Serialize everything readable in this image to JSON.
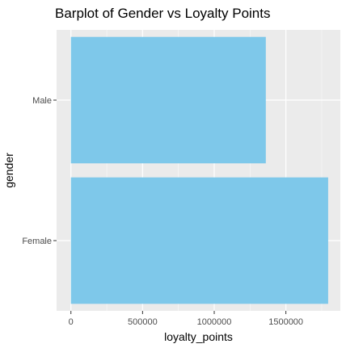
{
  "chart_data": {
    "type": "bar",
    "orientation": "horizontal",
    "title": "Barplot of Gender vs Loyalty Points",
    "xlabel": "loyalty_points",
    "ylabel": "gender",
    "categories": [
      "Female",
      "Male"
    ],
    "values": [
      1795000,
      1360000
    ],
    "xlim": [
      -100000,
      1880000
    ],
    "x_ticks": [
      0,
      500000,
      1000000,
      1500000
    ],
    "x_tick_labels": [
      "0",
      "500000",
      "1000000",
      "1500000"
    ],
    "grid": true,
    "legend": "none",
    "colors": {
      "bar": "#7ec8ea",
      "panel": "#ebebeb",
      "grid_major": "#ffffff",
      "tick_text": "#4d4d4d"
    }
  }
}
